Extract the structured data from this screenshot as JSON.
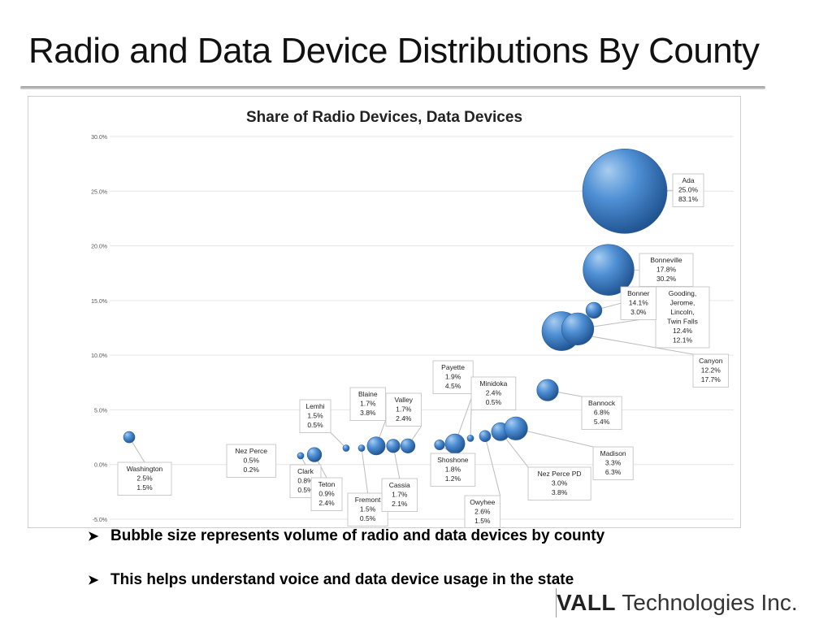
{
  "slide": {
    "title": "Radio and Data Device Distributions By County",
    "bullets": [
      "Bubble size represents volume of radio and data devices by county",
      "This helps understand voice and data device usage in the state"
    ],
    "brand_strong": "VALL",
    "brand_light": " Technologies Inc."
  },
  "colors": {
    "bubble_light": "#a9cdf0",
    "bubble_mid": "#4e8fd4",
    "bubble_dark": "#1d4f8c",
    "grid": "#e6e6e6",
    "label_border": "#bfbfbf"
  },
  "chart_data": {
    "type": "scatter",
    "title": "Share of Radio Devices, Data Devices",
    "ylim": [
      -5.0,
      30.0
    ],
    "yticks": [
      "30.0%",
      "25.0%",
      "20.0%",
      "15.0%",
      "10.0%",
      "5.0%",
      "0.0%",
      "-5.0%"
    ],
    "grid": true,
    "series": [
      {
        "points": [
          {
            "label": [
              "Washington",
              "2.5%",
              "1.5%"
            ],
            "x": 1,
            "y": 2.5,
            "size": 1.5
          },
          {
            "label": [
              "Nez Perce",
              "0.5%",
              "0.2%"
            ],
            "x": 2,
            "y": 0.5,
            "size": 0.2
          },
          {
            "label": [
              "Clark",
              "0.8%",
              "0.5%"
            ],
            "x": 3,
            "y": 0.8,
            "size": 0.5
          },
          {
            "label": [
              "Teton",
              "0.9%",
              "2.4%"
            ],
            "x": 4,
            "y": 0.9,
            "size": 2.4
          },
          {
            "label": [
              "Lemhi",
              "1.5%",
              "0.5%"
            ],
            "x": 5,
            "y": 1.5,
            "size": 0.5
          },
          {
            "label": [
              "Fremont",
              "1.5%",
              "0.5%"
            ],
            "x": 6,
            "y": 1.5,
            "size": 0.5
          },
          {
            "label": [
              "Blaine",
              "1.7%",
              "3.8%"
            ],
            "x": 7,
            "y": 1.7,
            "size": 3.8
          },
          {
            "label": [
              "Cassia",
              "1.7%",
              "2.1%"
            ],
            "x": 8,
            "y": 1.7,
            "size": 2.1
          },
          {
            "label": [
              "Valley",
              "1.7%",
              "2.4%"
            ],
            "x": 9,
            "y": 1.7,
            "size": 2.4
          },
          {
            "label": [
              "Shoshone",
              "1.8%",
              "1.2%"
            ],
            "x": 10,
            "y": 1.8,
            "size": 1.2
          },
          {
            "label": [
              "Payette",
              "1.9%",
              "4.5%"
            ],
            "x": 11,
            "y": 1.9,
            "size": 4.5
          },
          {
            "label": [
              "Minidoka",
              "2.4%",
              "0.5%"
            ],
            "x": 12,
            "y": 2.4,
            "size": 0.5
          },
          {
            "label": [
              "Owyhee",
              "2.6%",
              "1.5%"
            ],
            "x": 13,
            "y": 2.6,
            "size": 1.5
          },
          {
            "label": [
              "Nez Perce PD",
              "3.0%",
              "3.8%"
            ],
            "x": 14,
            "y": 3.0,
            "size": 3.8
          },
          {
            "label": [
              "Madison",
              "3.3%",
              "6.3%"
            ],
            "x": 15,
            "y": 3.3,
            "size": 6.3
          },
          {
            "label": [
              "Bannock",
              "6.8%",
              "5.4%"
            ],
            "x": 16,
            "y": 6.8,
            "size": 5.4
          },
          {
            "label": [
              "Canyon",
              "12.2%",
              "17.7%"
            ],
            "x": 17,
            "y": 12.2,
            "size": 17.7
          },
          {
            "label": [
              "Gooding,",
              "Jerome,",
              "Lincoln,",
              "Twin Falls",
              "12.4%",
              "12.1%"
            ],
            "x": 18,
            "y": 12.4,
            "size": 12.1
          },
          {
            "label": [
              "Bonner",
              "14.1%",
              "3.0%"
            ],
            "x": 19,
            "y": 14.1,
            "size": 3.0
          },
          {
            "label": [
              "Bonneville",
              "17.8%",
              "30.2%"
            ],
            "x": 20,
            "y": 17.8,
            "size": 30.2
          },
          {
            "label": [
              "Ada",
              "25.0%",
              "83.1%"
            ],
            "x": 21,
            "y": 25.0,
            "size": 83.1
          }
        ]
      }
    ]
  }
}
